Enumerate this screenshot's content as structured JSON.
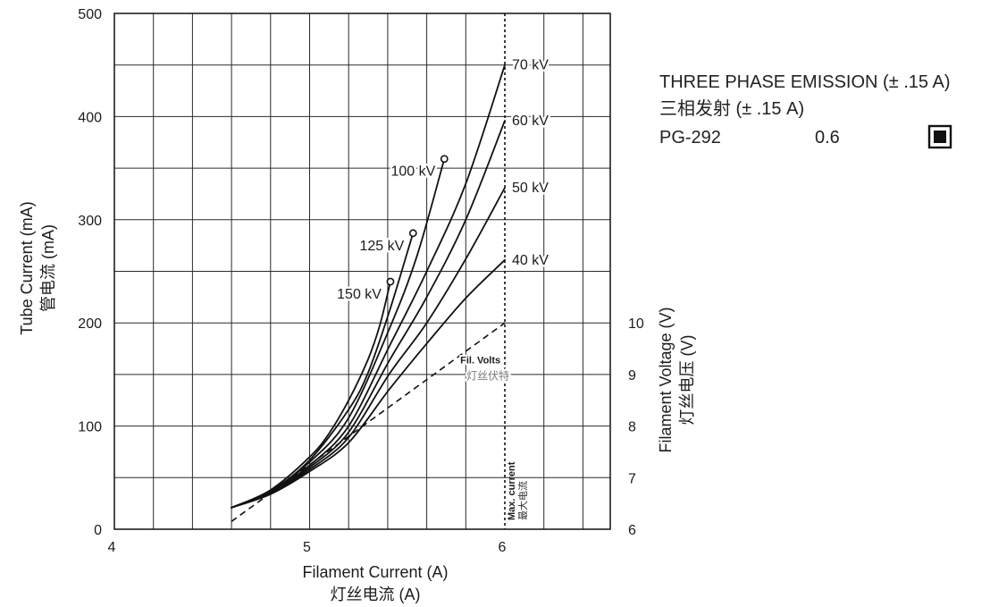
{
  "legend_box": {
    "title_en": "THREE PHASE EMISSION (± .15 A)",
    "title_zh": "三相发射 (± .15 A)",
    "model": "PG-292",
    "focal_spot": "0.6",
    "focal_spot_icon": "filled-square-in-box-icon"
  },
  "chart_data": {
    "type": "line",
    "xlabel": "Filament Current (A)",
    "xlabel_zh": "灯丝电流 (A)",
    "ylabel": "Tube Current (mA)",
    "ylabel_zh": "管电流 (mA)",
    "y2label": "Filament Voltage (V)",
    "y2label_zh": "灯丝电压 (V)",
    "xlim": [
      4,
      6.54
    ],
    "ylim": [
      0,
      500
    ],
    "y2lim": [
      6,
      16
    ],
    "xticks": [
      4,
      5,
      6
    ],
    "yticks": [
      0,
      100,
      200,
      300,
      400,
      500
    ],
    "y2ticks": [
      6,
      7,
      8,
      9,
      10
    ],
    "grid": true,
    "series": [
      {
        "name": "150 kV",
        "end_marker": true,
        "points": [
          [
            4.6,
            21
          ],
          [
            4.8,
            38
          ],
          [
            5.0,
            70
          ],
          [
            5.1,
            93
          ],
          [
            5.2,
            125
          ],
          [
            5.3,
            165
          ],
          [
            5.36,
            198
          ],
          [
            5.414,
            240
          ]
        ]
      },
      {
        "name": "125 kV",
        "end_marker": true,
        "points": [
          [
            4.6,
            21
          ],
          [
            4.8,
            37
          ],
          [
            5.0,
            67
          ],
          [
            5.2,
            116
          ],
          [
            5.3,
            152
          ],
          [
            5.41,
            212
          ],
          [
            5.53,
            287
          ]
        ]
      },
      {
        "name": "100 kV",
        "end_marker": true,
        "points": [
          [
            4.6,
            21
          ],
          [
            4.8,
            37
          ],
          [
            5.0,
            65
          ],
          [
            5.2,
            108
          ],
          [
            5.41,
            195
          ],
          [
            5.55,
            265
          ],
          [
            5.69,
            359
          ]
        ]
      },
      {
        "name": "70 kV",
        "points": [
          [
            4.6,
            21
          ],
          [
            4.8,
            36
          ],
          [
            5.0,
            62
          ],
          [
            5.2,
            100
          ],
          [
            5.41,
            178
          ],
          [
            5.6,
            250
          ],
          [
            5.8,
            335
          ],
          [
            6.0,
            450
          ]
        ]
      },
      {
        "name": "60 kV",
        "points": [
          [
            4.6,
            21
          ],
          [
            4.8,
            35
          ],
          [
            5.0,
            60
          ],
          [
            5.2,
            94
          ],
          [
            5.41,
            164
          ],
          [
            5.6,
            225
          ],
          [
            5.8,
            300
          ],
          [
            6.0,
            396
          ]
        ]
      },
      {
        "name": "50 kV",
        "points": [
          [
            4.6,
            21
          ],
          [
            4.8,
            35
          ],
          [
            5.0,
            58
          ],
          [
            5.2,
            89
          ],
          [
            5.41,
            151
          ],
          [
            5.6,
            200
          ],
          [
            5.8,
            262
          ],
          [
            6.0,
            331
          ]
        ]
      },
      {
        "name": "40 kV",
        "points": [
          [
            4.6,
            21
          ],
          [
            4.8,
            34
          ],
          [
            5.0,
            56
          ],
          [
            5.2,
            84
          ],
          [
            5.41,
            136
          ],
          [
            5.6,
            180
          ],
          [
            5.8,
            224
          ],
          [
            6.0,
            261
          ]
        ]
      },
      {
        "name": "Fil. Volts",
        "name_zh": "灯丝伏特",
        "secondary_axis": true,
        "dashed": true,
        "points": [
          [
            4.6,
            6.15
          ],
          [
            6.0,
            10.0
          ]
        ]
      }
    ],
    "max_current": {
      "label": "Max. current",
      "label_zh": "最大电流",
      "x": 6.0
    }
  }
}
